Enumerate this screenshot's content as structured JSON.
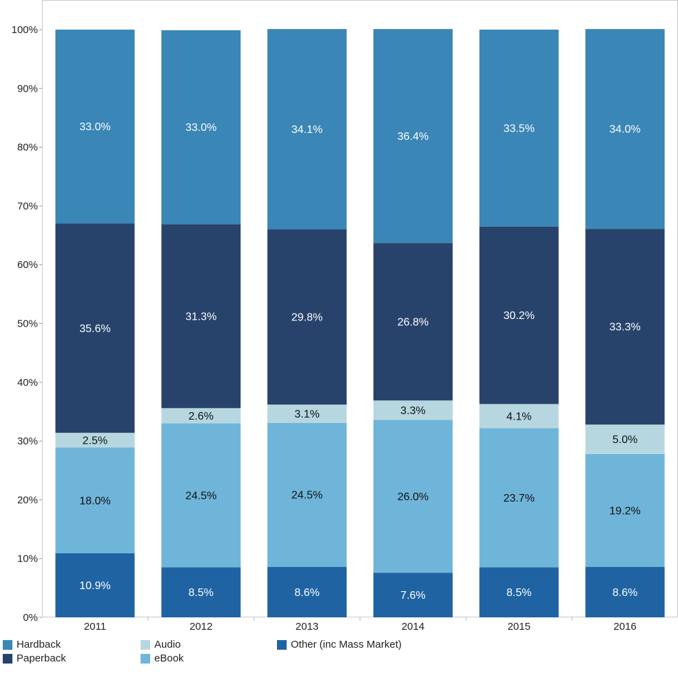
{
  "chart_data": {
    "type": "bar",
    "stacked": true,
    "normalized": true,
    "categories": [
      "2011",
      "2012",
      "2013",
      "2014",
      "2015",
      "2016"
    ],
    "series": [
      {
        "name": "Other (inc Mass Market)",
        "color": "#1f63a3",
        "label_color": "#ffffff",
        "values": [
          10.9,
          8.5,
          8.6,
          7.6,
          8.5,
          8.6
        ],
        "labels": [
          "10.9%",
          "8.5%",
          "8.6%",
          "7.6%",
          "8.5%",
          "8.6%"
        ]
      },
      {
        "name": "eBook",
        "color": "#6fb5da",
        "label_color": "#111111",
        "values": [
          18.0,
          24.5,
          24.5,
          26.0,
          23.7,
          19.2
        ],
        "labels": [
          "18.0%",
          "24.5%",
          "24.5%",
          "26.0%",
          "23.7%",
          "19.2%"
        ]
      },
      {
        "name": "Audio",
        "color": "#b7d7e0",
        "label_color": "#111111",
        "values": [
          2.5,
          2.6,
          3.1,
          3.3,
          4.1,
          5.0
        ],
        "labels": [
          "2.5%",
          "2.6%",
          "3.1%",
          "3.3%",
          "4.1%",
          "5.0%"
        ]
      },
      {
        "name": "Paperback",
        "color": "#28436b",
        "label_color": "#ffffff",
        "values": [
          35.6,
          31.3,
          29.8,
          26.8,
          30.2,
          33.3
        ],
        "labels": [
          "35.6%",
          "31.3%",
          "29.8%",
          "26.8%",
          "30.2%",
          "33.3%"
        ]
      },
      {
        "name": "Hardback",
        "color": "#3a86b6",
        "label_color": "#ffffff",
        "values": [
          33.0,
          33.0,
          34.1,
          36.4,
          33.5,
          34.0
        ],
        "labels": [
          "33.0%",
          "33.0%",
          "34.1%",
          "36.4%",
          "33.5%",
          "34.0%"
        ]
      }
    ],
    "y_ticks": [
      "0%",
      "10%",
      "20%",
      "30%",
      "40%",
      "50%",
      "60%",
      "70%",
      "80%",
      "90%",
      "100%"
    ],
    "ylim": [
      0,
      100
    ],
    "grid": false,
    "legend_position": "bottom-left",
    "legend": {
      "columns": [
        [
          "Hardback",
          "Paperback"
        ],
        [
          "Audio",
          "eBook"
        ],
        [
          "Other (inc Mass Market)"
        ]
      ]
    }
  }
}
